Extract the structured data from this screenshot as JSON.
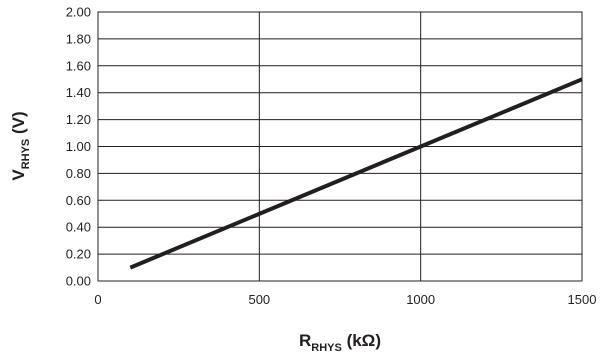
{
  "chart_data": {
    "type": "line",
    "grid": true,
    "xlabel": {
      "main": "R",
      "sub": "RHYS",
      "unit": " (kΩ)"
    },
    "ylabel": {
      "main": "V",
      "sub": "RHYS",
      "unit": " (V)"
    },
    "xlim": [
      0,
      1500
    ],
    "ylim": [
      0,
      2.0
    ],
    "xticks": [
      0,
      500,
      1000,
      1500
    ],
    "yticks": [
      0,
      0.2,
      0.4,
      0.6,
      0.8,
      1.0,
      1.2,
      1.4,
      1.6,
      1.8,
      2.0
    ],
    "xtick_labels": [
      "0",
      "500",
      "1000",
      "1500"
    ],
    "ytick_labels": [
      "0.00",
      "0.20",
      "0.40",
      "0.60",
      "0.80",
      "1.00",
      "1.20",
      "1.40",
      "1.60",
      "1.80",
      "2.00"
    ],
    "series": [
      {
        "x": [
          100,
          1500
        ],
        "y": [
          0.1,
          1.5
        ],
        "color": "#231f20"
      }
    ]
  }
}
